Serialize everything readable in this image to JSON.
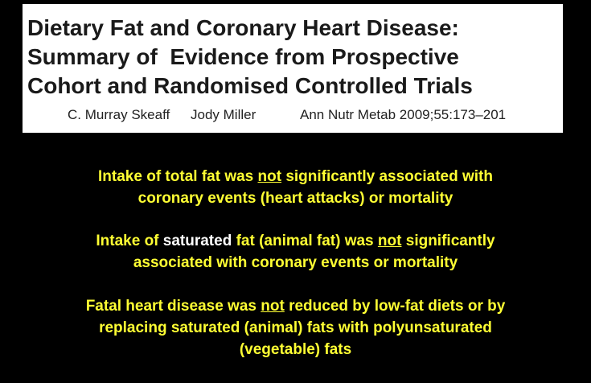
{
  "header": {
    "title_lines": [
      "Dietary Fat and Coronary Heart Disease:",
      "Summary of  Evidence from Prospective",
      "Cohort and Randomised Controlled Trials"
    ],
    "authors": [
      "C. Murray Skeaff",
      "Jody Miller"
    ],
    "citation": "Ann Nutr Metab 2009;55:173–201"
  },
  "statements": [
    {
      "lines": [
        [
          "Intake of total fat was ",
          "not",
          " significantly associated with"
        ],
        [
          "coronary events (heart attacks) or mortality"
        ]
      ]
    },
    {
      "lines": [
        [
          "Intake of ",
          "saturated",
          " fat (animal fat) was ",
          "not",
          " significantly"
        ],
        [
          "associated with coronary events or mortality"
        ]
      ]
    },
    {
      "lines": [
        [
          "Fatal heart disease was ",
          "not",
          " reduced by low-fat diets or by"
        ],
        [
          "replacing saturated (animal) fats with polyunsaturated"
        ],
        [
          "(vegetable) fats"
        ]
      ]
    }
  ]
}
